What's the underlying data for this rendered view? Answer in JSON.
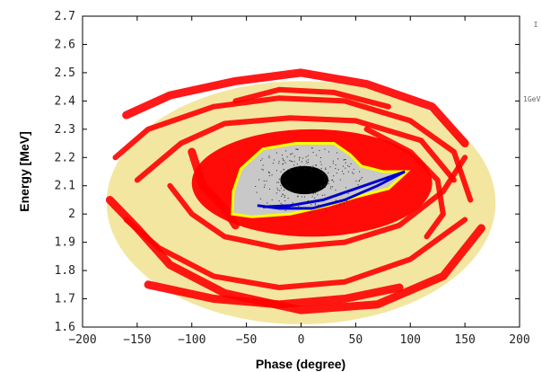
{
  "chart_data": {
    "type": "scatter",
    "title": "",
    "xlabel": "Phase (degree)",
    "ylabel": "Energy [MeV]",
    "xlim": [
      -200,
      200
    ],
    "ylim": [
      1.6,
      2.7
    ],
    "xticks": [
      -200,
      -150,
      -100,
      -50,
      0,
      50,
      100,
      150,
      200
    ],
    "yticks": [
      1.6,
      1.7,
      1.8,
      1.9,
      2,
      2.1,
      2.2,
      2.3,
      2.4,
      2.5,
      2.6,
      2.7
    ],
    "grid": false,
    "side_labels": [
      "I",
      "1GeV"
    ],
    "colors": {
      "outer_halo": "#f3e6a0",
      "filament": "#ff0000",
      "core_region": "#c8c8c8",
      "boundary_yellow": "#ffff00",
      "boundary_blue": "#0000cc",
      "core": "#000000"
    },
    "regions": [
      {
        "name": "outer halo",
        "center": [
          0,
          2.04
        ],
        "semi_axes": [
          178,
          0.43
        ]
      },
      {
        "name": "core",
        "center": [
          3,
          2.12
        ],
        "semi_axes": [
          22,
          0.05
        ]
      }
    ],
    "inner_region_outline": [
      [
        -63,
        2.0
      ],
      [
        -62,
        2.08
      ],
      [
        -55,
        2.16
      ],
      [
        -35,
        2.23
      ],
      [
        -5,
        2.25
      ],
      [
        30,
        2.25
      ],
      [
        45,
        2.21
      ],
      [
        55,
        2.17
      ],
      [
        75,
        2.15
      ],
      [
        97,
        2.15
      ],
      [
        80,
        2.09
      ],
      [
        50,
        2.06
      ],
      [
        25,
        2.03
      ],
      [
        -10,
        2.0
      ],
      [
        -45,
        1.99
      ],
      [
        -63,
        2.0
      ]
    ],
    "blue_boundary": [
      [
        -40,
        2.03
      ],
      [
        -20,
        2.02
      ],
      [
        10,
        2.02
      ],
      [
        40,
        2.05
      ],
      [
        70,
        2.1
      ],
      [
        90,
        2.14
      ],
      [
        95,
        2.15
      ],
      [
        80,
        2.13
      ],
      [
        50,
        2.09
      ],
      [
        20,
        2.05
      ],
      [
        -10,
        2.03
      ],
      [
        -35,
        2.025
      ]
    ]
  }
}
